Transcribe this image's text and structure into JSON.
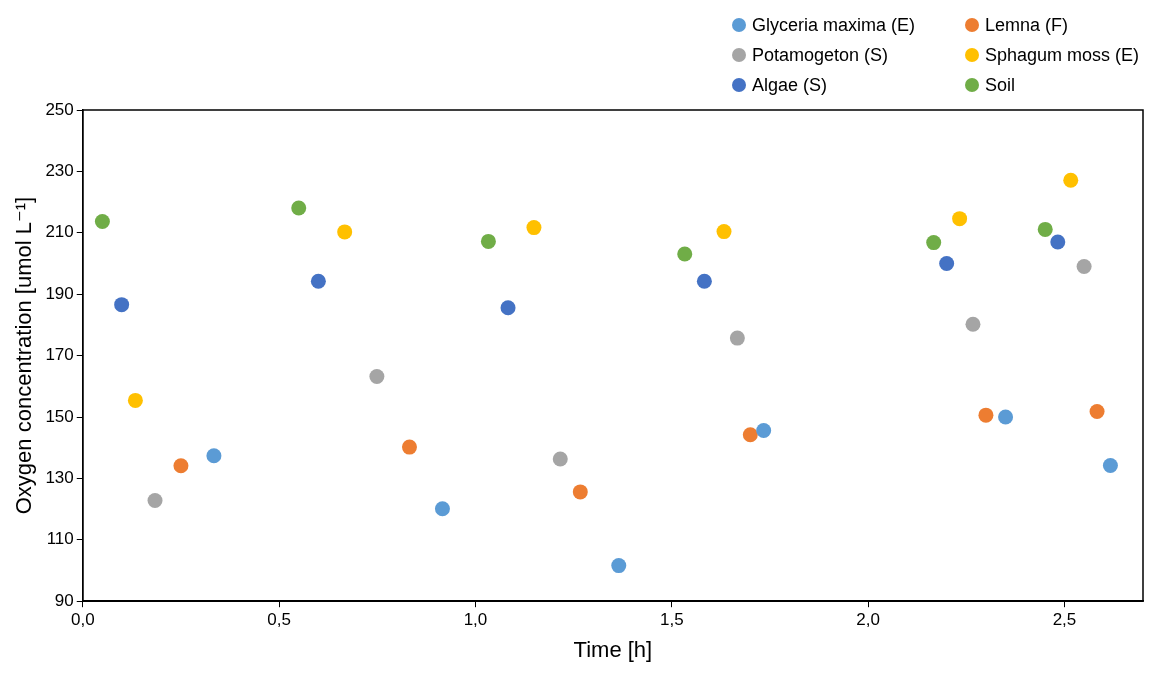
{
  "chart_data": {
    "type": "scatter",
    "xlabel": "Time [h]",
    "ylabel": "Oxygen concentration [umol L⁻¹]",
    "xlim": [
      0,
      2.7
    ],
    "xticks": [
      {
        "value": 0,
        "label": "0,0"
      },
      {
        "value": 0.5,
        "label": "0,5"
      },
      {
        "value": 1,
        "label": "1,0"
      },
      {
        "value": 1.5,
        "label": "1,5"
      },
      {
        "value": 2,
        "label": "2,0"
      },
      {
        "value": 2.5,
        "label": "2,5"
      }
    ],
    "ylim": [
      90,
      250
    ],
    "yticks": [
      90,
      110,
      130,
      150,
      170,
      190,
      210,
      230,
      250
    ],
    "grid": false,
    "legend": "top right",
    "marker": "circle",
    "series": [
      {
        "name": "Glyceria maxima (E)",
        "color": "#5b9bd5",
        "x": [
          0.334,
          0.916,
          1.365,
          1.734,
          2.35,
          2.617
        ],
        "values": [
          137.4,
          120.1,
          101.6,
          145.6,
          150.0,
          134.2
        ]
      },
      {
        "name": "Lemna (F)",
        "color": "#ed7d31",
        "x": [
          0.25,
          0.832,
          1.267,
          1.7,
          2.3,
          2.583
        ],
        "values": [
          134.1,
          140.2,
          125.6,
          144.2,
          150.6,
          151.8
        ]
      },
      {
        "name": "Potamogeton (S)",
        "color": "#a5a5a5",
        "x": [
          0.184,
          0.749,
          1.216,
          1.667,
          2.267,
          2.55
        ],
        "values": [
          122.8,
          163.2,
          136.3,
          175.7,
          180.2,
          199.0
        ]
      },
      {
        "name": "Sphagum moss (E)",
        "color": "#ffc000",
        "x": [
          0.134,
          0.667,
          1.149,
          1.633,
          2.233,
          2.516
        ],
        "values": [
          155.4,
          210.3,
          211.7,
          210.4,
          214.6,
          227.1
        ]
      },
      {
        "name": "Algae (S)",
        "color": "#4472c4",
        "x": [
          0.099,
          0.6,
          1.083,
          1.583,
          2.2,
          2.483
        ],
        "values": [
          186.6,
          194.2,
          185.6,
          194.2,
          200.0,
          207.0
        ]
      },
      {
        "name": "Soil",
        "color": "#70ad47",
        "x": [
          0.05,
          0.55,
          1.033,
          1.533,
          2.167,
          2.451
        ],
        "values": [
          213.7,
          218.1,
          207.2,
          203.1,
          206.8,
          211.1
        ]
      }
    ]
  }
}
